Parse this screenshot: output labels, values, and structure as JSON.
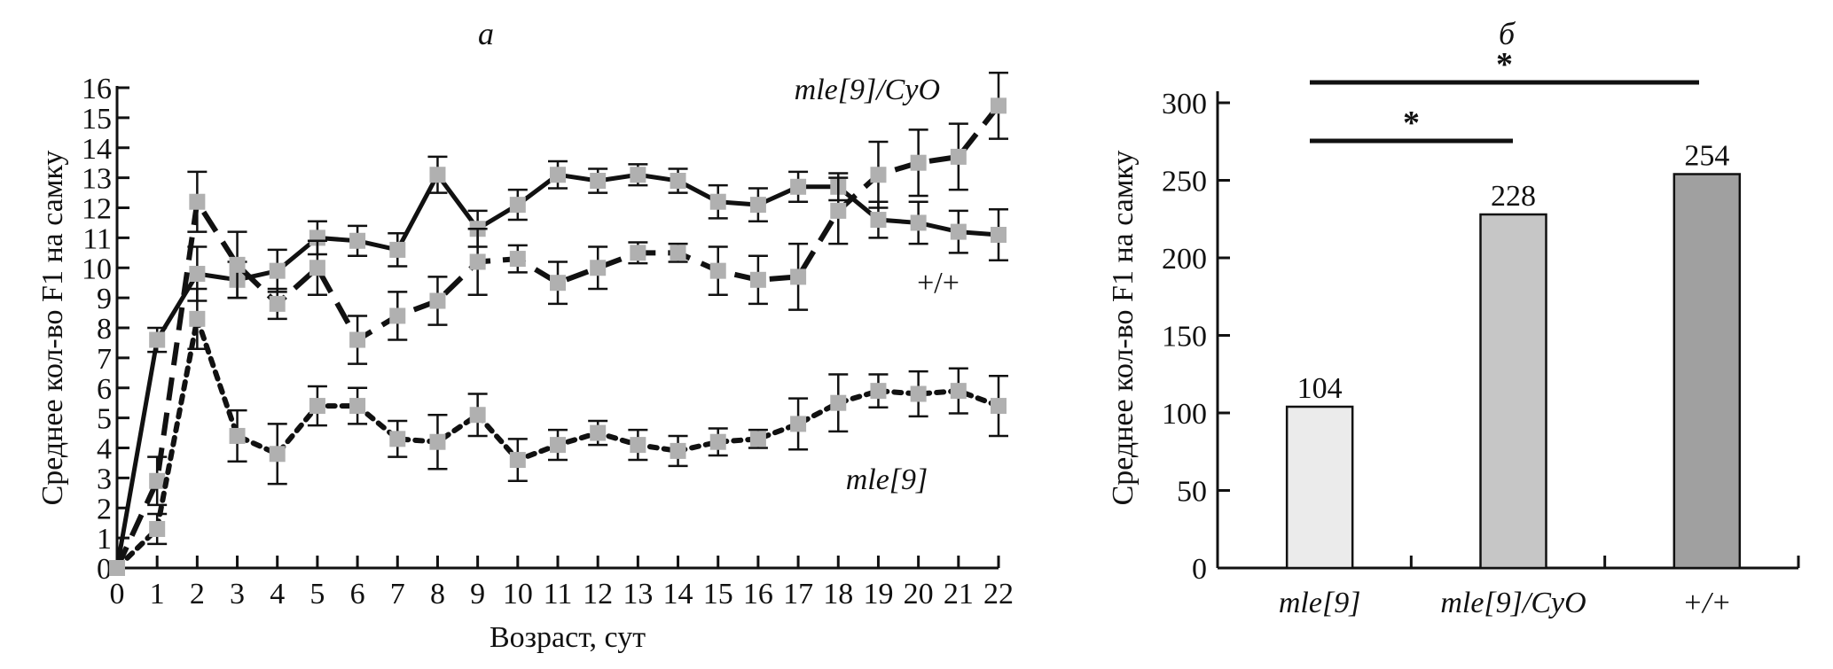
{
  "chart_data": [
    {
      "panel": "a",
      "type": "line",
      "title": "а",
      "xlabel": "Возраст, сут",
      "ylabel": "Среднее кол-во F1 на самку",
      "xlim": [
        0,
        22
      ],
      "ylim": [
        0,
        16
      ],
      "x_ticks": [
        0,
        1,
        2,
        3,
        4,
        5,
        6,
        7,
        8,
        9,
        10,
        11,
        12,
        13,
        14,
        15,
        16,
        17,
        18,
        19,
        20,
        21,
        22
      ],
      "y_ticks": [
        0,
        1,
        2,
        3,
        4,
        5,
        6,
        7,
        8,
        9,
        10,
        11,
        12,
        13,
        14,
        15,
        16
      ],
      "grid": false,
      "x": [
        0,
        1,
        2,
        3,
        4,
        5,
        6,
        7,
        8,
        9,
        10,
        11,
        12,
        13,
        14,
        15,
        16,
        17,
        18,
        19,
        20,
        21,
        22
      ],
      "series": [
        {
          "name": "+/+",
          "style": "solid",
          "values": [
            0,
            7.6,
            9.8,
            9.6,
            9.9,
            11.0,
            10.9,
            10.6,
            13.1,
            11.3,
            12.1,
            13.1,
            12.9,
            13.1,
            12.9,
            12.2,
            12.1,
            12.7,
            12.7,
            11.6,
            11.5,
            11.2,
            11.1
          ],
          "errors": [
            0,
            0.4,
            0.9,
            0.6,
            0.7,
            0.55,
            0.5,
            0.55,
            0.6,
            0.6,
            0.5,
            0.45,
            0.4,
            0.35,
            0.4,
            0.55,
            0.55,
            0.5,
            0.45,
            0.6,
            0.7,
            0.7,
            0.85
          ]
        },
        {
          "name": "mle[9]/CyO",
          "style": "dashed",
          "values": [
            0,
            2.9,
            12.2,
            10.1,
            8.8,
            10.0,
            7.6,
            8.4,
            8.9,
            10.2,
            10.3,
            9.5,
            10.0,
            10.5,
            10.5,
            9.9,
            9.6,
            9.7,
            11.9,
            13.1,
            13.5,
            13.7,
            15.4
          ],
          "errors": [
            0,
            0.8,
            1.0,
            1.1,
            0.5,
            0.9,
            0.8,
            0.8,
            0.8,
            1.1,
            0.45,
            0.7,
            0.7,
            0.35,
            0.3,
            0.8,
            0.8,
            1.1,
            1.1,
            1.1,
            1.1,
            1.1,
            1.1
          ]
        },
        {
          "name": "mle[9]",
          "style": "dotted",
          "values": [
            0,
            1.3,
            8.3,
            4.4,
            3.8,
            5.4,
            5.4,
            4.3,
            4.2,
            5.1,
            3.6,
            4.1,
            4.5,
            4.1,
            3.9,
            4.2,
            4.3,
            4.8,
            5.5,
            5.9,
            5.8,
            5.9,
            5.4
          ],
          "errors": [
            0,
            0.5,
            1.0,
            0.85,
            1.0,
            0.65,
            0.6,
            0.6,
            0.9,
            0.7,
            0.7,
            0.5,
            0.4,
            0.5,
            0.5,
            0.45,
            0.3,
            0.85,
            0.95,
            0.55,
            0.75,
            0.75,
            1.0
          ]
        }
      ],
      "annotations": [
        {
          "text": "mle[9]/CyO",
          "near": "top-right",
          "italic": true
        },
        {
          "text": "+/+",
          "near": "right, below solid line",
          "italic": false
        },
        {
          "text": "mle[9]",
          "near": "right, below dotted line",
          "italic": true
        }
      ]
    },
    {
      "panel": "б",
      "type": "bar",
      "title": "б",
      "xlabel": "",
      "ylabel": "Среднее кол-во F1 на самку",
      "categories": [
        "mle[9]",
        "mle[9]/CyO",
        "+/+"
      ],
      "values": [
        104,
        228,
        254
      ],
      "value_labels": [
        "104",
        "228",
        "254"
      ],
      "bar_colors": [
        "#ebebeb",
        "#c6c6c6",
        "#a0a0a0"
      ],
      "ylim": [
        0,
        300
      ],
      "y_ticks": [
        0,
        50,
        100,
        150,
        200,
        250,
        300
      ],
      "grid": false,
      "significance": [
        {
          "from": "mle[9]",
          "to": "mle[9]/CyO",
          "label": "*"
        },
        {
          "from": "mle[9]",
          "to": "+/+",
          "label": "*"
        }
      ]
    }
  ]
}
